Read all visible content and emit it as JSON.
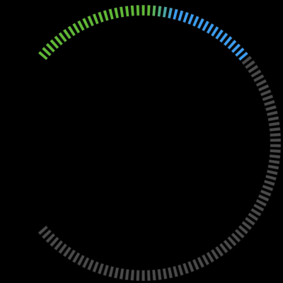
{
  "gauge": {
    "level_fraction": 0.36,
    "segment_count": 120,
    "colors": {
      "background": "#000000",
      "filled_start": "#5fb935",
      "filled_end": "#3a9cf0",
      "track": "#4a4a4a",
      "segment_stroke": "#1b1b1b"
    }
  }
}
